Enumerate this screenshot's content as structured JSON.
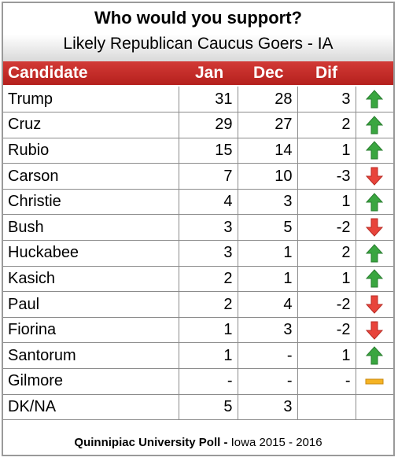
{
  "chart_data": {
    "type": "table",
    "title": "Who would you support?",
    "subtitle": "Likely Republican Caucus Goers - IA",
    "columns": [
      "Candidate",
      "Jan",
      "Dec",
      "Dif"
    ],
    "rows": [
      {
        "candidate": "Trump",
        "jan": "31",
        "dec": "28",
        "dif": "3",
        "trend": "up"
      },
      {
        "candidate": "Cruz",
        "jan": "29",
        "dec": "27",
        "dif": "2",
        "trend": "up"
      },
      {
        "candidate": "Rubio",
        "jan": "15",
        "dec": "14",
        "dif": "1",
        "trend": "up"
      },
      {
        "candidate": "Carson",
        "jan": "7",
        "dec": "10",
        "dif": "-3",
        "trend": "down"
      },
      {
        "candidate": "Christie",
        "jan": "4",
        "dec": "3",
        "dif": "1",
        "trend": "up"
      },
      {
        "candidate": "Bush",
        "jan": "3",
        "dec": "5",
        "dif": "-2",
        "trend": "down"
      },
      {
        "candidate": "Huckabee",
        "jan": "3",
        "dec": "1",
        "dif": "2",
        "trend": "up"
      },
      {
        "candidate": "Kasich",
        "jan": "2",
        "dec": "1",
        "dif": "1",
        "trend": "up"
      },
      {
        "candidate": "Paul",
        "jan": "2",
        "dec": "4",
        "dif": "-2",
        "trend": "down"
      },
      {
        "candidate": "Fiorina",
        "jan": "1",
        "dec": "3",
        "dif": "-2",
        "trend": "down"
      },
      {
        "candidate": "Santorum",
        "jan": "1",
        "dec": "-",
        "dif": "1",
        "trend": "up"
      },
      {
        "candidate": "Gilmore",
        "jan": "-",
        "dec": "-",
        "dif": "-",
        "trend": "flat"
      },
      {
        "candidate": "DK/NA",
        "jan": "5",
        "dec": "3",
        "dif": "",
        "trend": "none"
      }
    ]
  },
  "footer": {
    "source_bold": "Quinnipiac University Poll -",
    "source_rest": " Iowa 2015 - 2016"
  },
  "colors": {
    "header_bg": "#c0282a",
    "up_arrow": "#3aa640",
    "down_arrow": "#e8443b",
    "flat_bar": "#f5b323"
  }
}
